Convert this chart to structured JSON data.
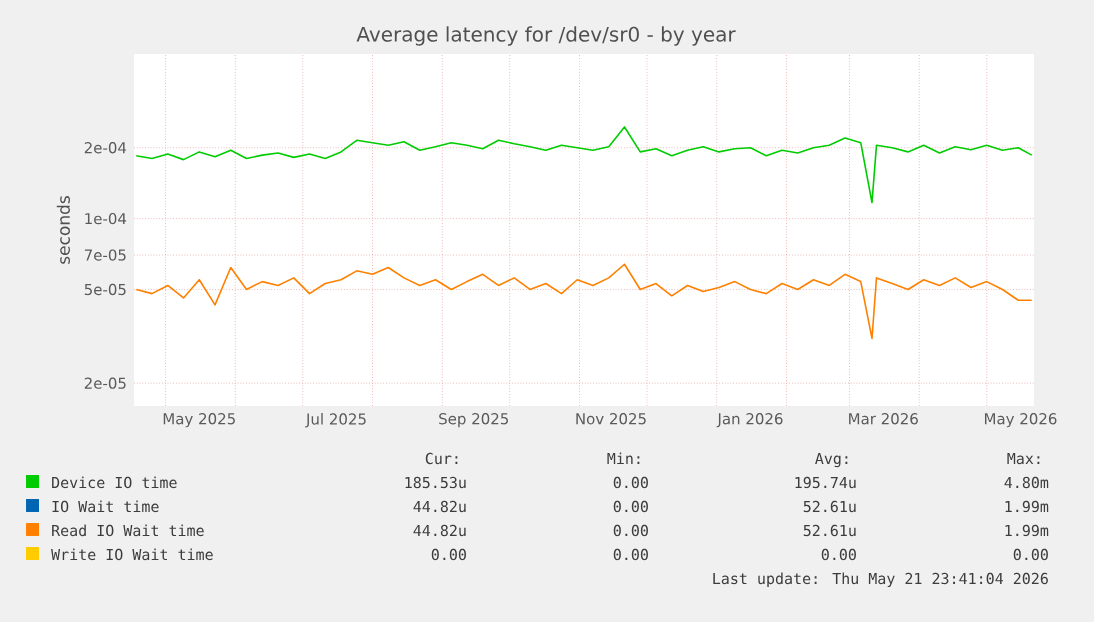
{
  "chart_data": {
    "type": "line",
    "title": "Average latency for /dev/sr0 - by year",
    "ylabel": "seconds",
    "x": [
      "2025-04-18",
      "2025-04-25",
      "2025-05-02",
      "2025-05-09",
      "2025-05-16",
      "2025-05-23",
      "2025-05-30",
      "2025-06-06",
      "2025-06-13",
      "2025-06-20",
      "2025-06-27",
      "2025-07-04",
      "2025-07-11",
      "2025-07-18",
      "2025-07-25",
      "2025-08-01",
      "2025-08-08",
      "2025-08-15",
      "2025-08-22",
      "2025-08-29",
      "2025-09-05",
      "2025-09-12",
      "2025-09-19",
      "2025-09-26",
      "2025-10-03",
      "2025-10-10",
      "2025-10-17",
      "2025-10-24",
      "2025-10-31",
      "2025-11-07",
      "2025-11-14",
      "2025-11-21",
      "2025-11-28",
      "2025-12-05",
      "2025-12-12",
      "2025-12-19",
      "2025-12-26",
      "2026-01-02",
      "2026-01-09",
      "2026-01-16",
      "2026-01-23",
      "2026-01-30",
      "2026-02-06",
      "2026-02-13",
      "2026-02-20",
      "2026-02-27",
      "2026-03-06",
      "2026-03-11",
      "2026-03-13",
      "2026-03-20",
      "2026-03-27",
      "2026-04-03",
      "2026-04-10",
      "2026-04-17",
      "2026-04-24",
      "2026-05-01",
      "2026-05-08",
      "2026-05-15",
      "2026-05-21"
    ],
    "series": [
      {
        "name": "Device IO time",
        "color": "#00cc00",
        "values": [
          0.000185,
          0.00018,
          0.000188,
          0.000178,
          0.000192,
          0.000183,
          0.000195,
          0.00018,
          0.000186,
          0.00019,
          0.000182,
          0.000188,
          0.00018,
          0.000192,
          0.000215,
          0.00021,
          0.000205,
          0.000212,
          0.000195,
          0.000202,
          0.00021,
          0.000205,
          0.000198,
          0.000215,
          0.000208,
          0.000202,
          0.000195,
          0.000205,
          0.0002,
          0.000195,
          0.000202,
          0.000245,
          0.000192,
          0.000198,
          0.000185,
          0.000195,
          0.000202,
          0.000192,
          0.000198,
          0.0002,
          0.000185,
          0.000195,
          0.00019,
          0.0002,
          0.000205,
          0.00022,
          0.00021,
          0.000117,
          0.000205,
          0.0002,
          0.000192,
          0.000205,
          0.00019,
          0.000202,
          0.000196,
          0.000205,
          0.000195,
          0.0002,
          0.000186
        ]
      },
      {
        "name": "IO Wait time",
        "color": "#0066b3",
        "values": [
          null,
          null,
          null,
          null,
          null,
          null,
          null,
          null,
          null,
          null,
          null,
          null,
          null,
          null,
          null,
          null,
          null,
          null,
          null,
          null,
          null,
          null,
          null,
          null,
          null,
          null,
          null,
          null,
          null,
          null,
          null,
          null,
          null,
          null,
          null,
          null,
          null,
          null,
          null,
          null,
          null,
          null,
          null,
          null,
          null,
          null,
          null,
          null,
          null,
          null,
          null,
          null,
          null,
          null,
          null,
          null,
          null,
          null,
          null
        ]
      },
      {
        "name": "Read IO Wait time",
        "color": "#ff8000",
        "values": [
          5e-05,
          4.8e-05,
          5.2e-05,
          4.6e-05,
          5.5e-05,
          4.3e-05,
          6.2e-05,
          5e-05,
          5.4e-05,
          5.2e-05,
          5.6e-05,
          4.8e-05,
          5.3e-05,
          5.5e-05,
          6e-05,
          5.8e-05,
          6.2e-05,
          5.6e-05,
          5.2e-05,
          5.5e-05,
          5e-05,
          5.4e-05,
          5.8e-05,
          5.2e-05,
          5.6e-05,
          5e-05,
          5.3e-05,
          4.8e-05,
          5.5e-05,
          5.2e-05,
          5.6e-05,
          6.4e-05,
          5e-05,
          5.3e-05,
          4.7e-05,
          5.2e-05,
          4.9e-05,
          5.1e-05,
          5.4e-05,
          5e-05,
          4.8e-05,
          5.3e-05,
          5e-05,
          5.5e-05,
          5.2e-05,
          5.8e-05,
          5.4e-05,
          3.1e-05,
          5.6e-05,
          5.3e-05,
          5e-05,
          5.5e-05,
          5.2e-05,
          5.6e-05,
          5.1e-05,
          5.4e-05,
          5e-05,
          4.5e-05,
          4.5e-05
        ]
      },
      {
        "name": "Write IO Wait time",
        "color": "#ffcc00",
        "values": [
          null,
          null,
          null,
          null,
          null,
          null,
          null,
          null,
          null,
          null,
          null,
          null,
          null,
          null,
          null,
          null,
          null,
          null,
          null,
          null,
          null,
          null,
          null,
          null,
          null,
          null,
          null,
          null,
          null,
          null,
          null,
          null,
          null,
          null,
          null,
          null,
          null,
          null,
          null,
          null,
          null,
          null,
          null,
          null,
          null,
          null,
          null,
          null,
          null,
          null,
          null,
          null,
          null,
          null,
          null,
          null,
          null,
          null,
          null
        ]
      }
    ],
    "xlim": [
      "2025-04-17",
      "2026-05-22"
    ],
    "xticks": [
      {
        "value": "2025-05-01",
        "label": null
      },
      {
        "value": "2025-06-01",
        "label": null
      },
      {
        "value": "2025-07-01",
        "label": null
      },
      {
        "value": "2025-08-01",
        "label": null
      },
      {
        "value": "2025-09-01",
        "label": null
      },
      {
        "value": "2025-10-01",
        "label": null
      },
      {
        "value": "2025-11-01",
        "label": null
      },
      {
        "value": "2025-12-01",
        "label": null
      },
      {
        "value": "2026-01-01",
        "label": null
      },
      {
        "value": "2026-02-01",
        "label": null
      },
      {
        "value": "2026-03-01",
        "label": null
      },
      {
        "value": "2026-04-01",
        "label": null
      },
      {
        "value": "2026-05-01",
        "label": null
      },
      {
        "value": "2025-05-16",
        "label": "May 2025"
      },
      {
        "value": "2025-07-16",
        "label": "Jul 2025"
      },
      {
        "value": "2025-09-15",
        "label": "Sep 2025"
      },
      {
        "value": "2025-11-15",
        "label": "Nov 2025"
      },
      {
        "value": "2026-01-16",
        "label": "Jan 2026"
      },
      {
        "value": "2026-03-16",
        "label": "Mar 2026"
      },
      {
        "value": "2026-05-16",
        "label": "May 2026"
      }
    ],
    "ylim": [
      1.6e-05,
      0.0005
    ],
    "log": true,
    "yticks": [
      {
        "value": 2e-05,
        "label": "2e-05"
      },
      {
        "value": 5e-05,
        "label": "5e-05"
      },
      {
        "value": 7e-05,
        "label": "7e-05"
      },
      {
        "value": 0.0001,
        "label": "1e-04"
      },
      {
        "value": 0.0002,
        "label": "2e-04"
      }
    ],
    "grid": true,
    "legend": "bottom",
    "line_style": "solid",
    "annotations": [
      "Cur:",
      "Min:",
      "Avg:",
      "Max:",
      "185.53u",
      "0.00",
      "195.74u",
      "4.80m",
      "44.82u",
      "0.00",
      "52.61u",
      "1.99m",
      "44.82u",
      "0.00",
      "52.61u",
      "1.99m",
      "0.00",
      "0.00",
      "0.00",
      "0.00",
      "Last update: Thu May 21 23:41:04 2026"
    ]
  }
}
